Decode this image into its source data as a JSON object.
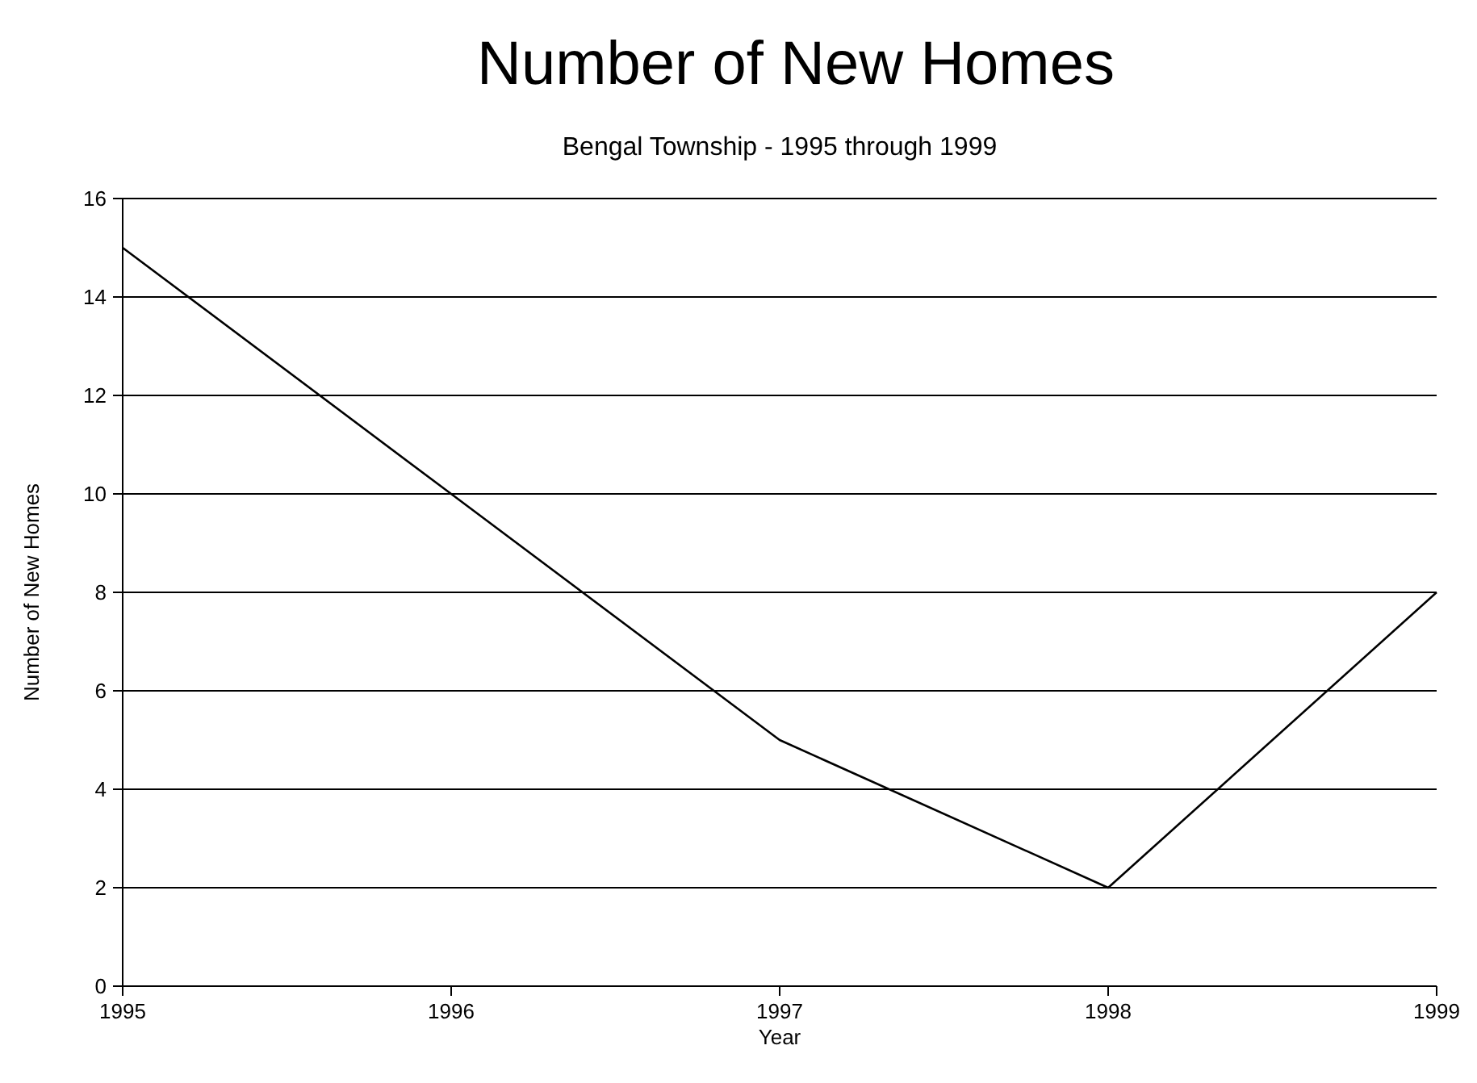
{
  "chart_data": {
    "type": "line",
    "title": "Number of New Homes",
    "subtitle": "Bengal Township - 1995 through 1999",
    "xlabel": "Year",
    "ylabel": "Number of New Homes",
    "x": [
      1995,
      1996,
      1997,
      1998,
      1999
    ],
    "series": [
      {
        "color": "#000000",
        "values": [
          15,
          10,
          5,
          2,
          8
        ]
      }
    ],
    "xlim": [
      1995,
      1999
    ],
    "xticks": [
      1995,
      1996,
      1997,
      1998,
      1999
    ],
    "ylim": [
      0,
      16
    ],
    "yticks": [
      0,
      2,
      4,
      6,
      8,
      10,
      12,
      14,
      16
    ],
    "grid": "y",
    "marker": "none",
    "line_style": "solid"
  }
}
